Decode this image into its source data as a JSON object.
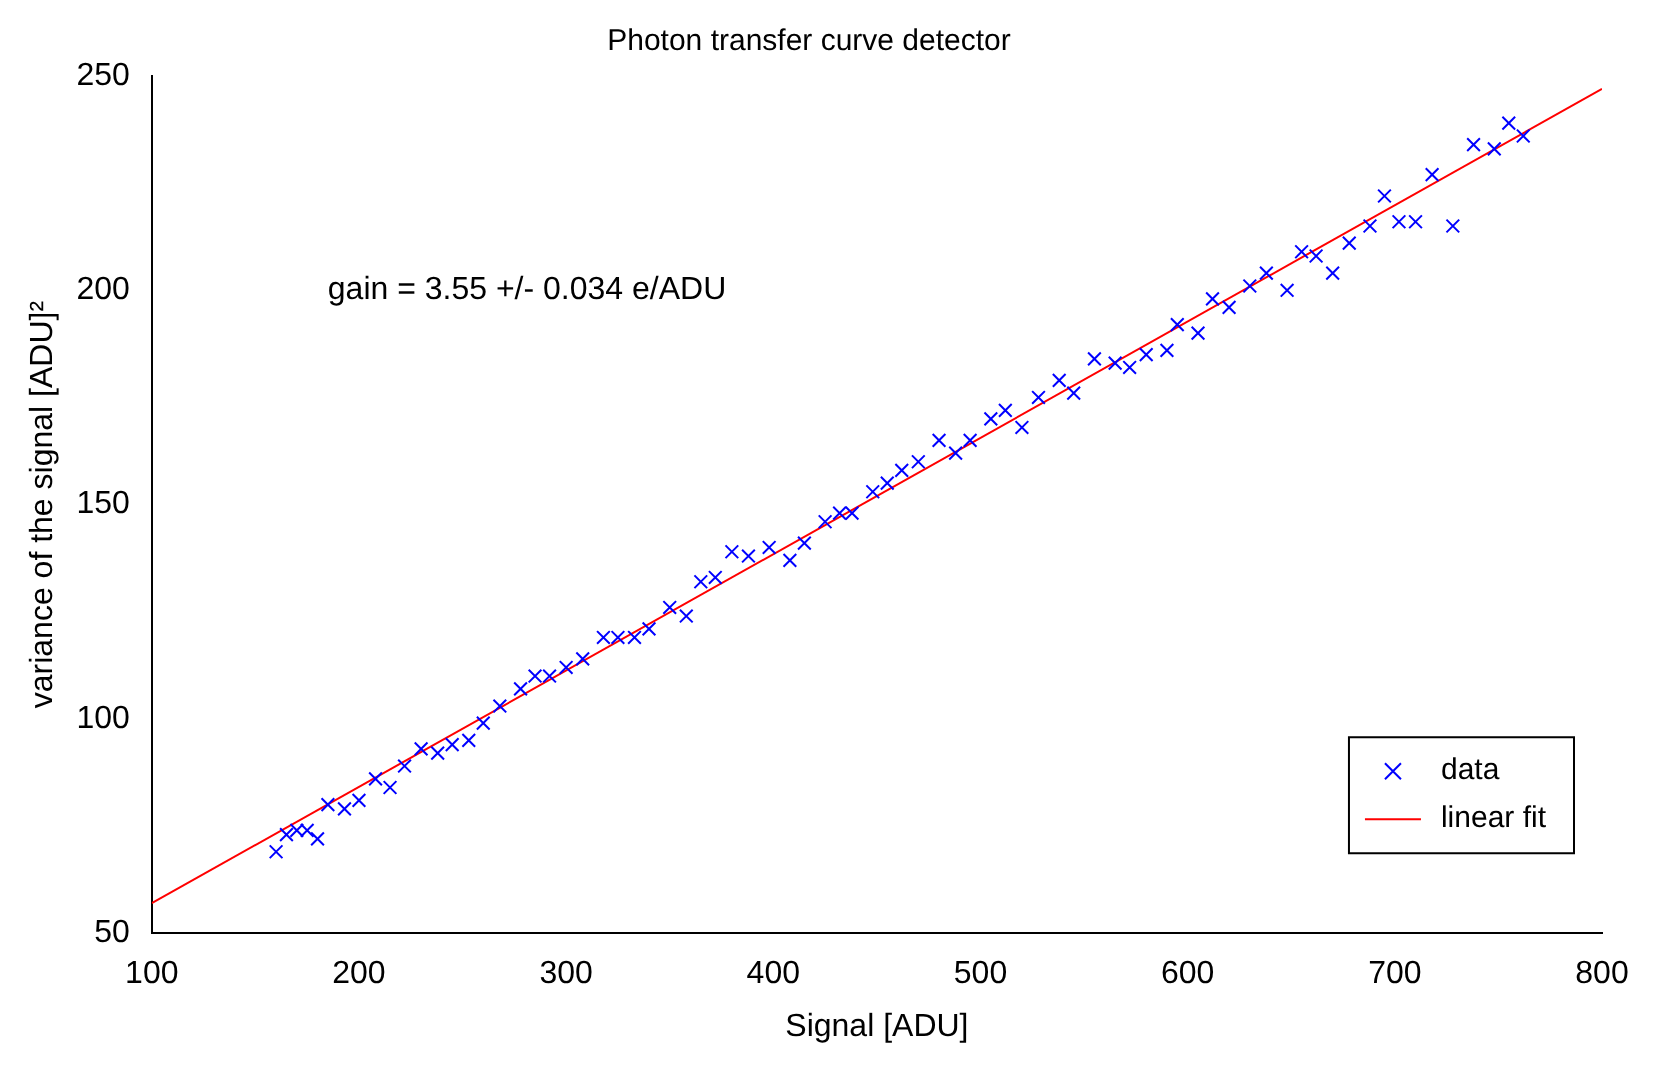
{
  "chart_data": {
    "type": "scatter",
    "title": "Photon transfer curve detector",
    "xlabel": "Signal [ADU]",
    "ylabel": "variance of the signal [ADU]²",
    "annotations": [
      "gain = 3.55 +/- 0.034 e/ADU"
    ],
    "xlim": [
      100,
      800
    ],
    "xticks": [
      100,
      200,
      300,
      400,
      500,
      600,
      700,
      800
    ],
    "ylim": [
      50,
      250
    ],
    "yticks": [
      50,
      100,
      150,
      200,
      250
    ],
    "grid": false,
    "legend": "bottom right",
    "marker": "cross",
    "series": [
      {
        "name": "data",
        "color": "#0000ff",
        "x": [
          160,
          165,
          170,
          175,
          180,
          185,
          193,
          200,
          208,
          215,
          222,
          230,
          238,
          245,
          253,
          260,
          268,
          278,
          285,
          292,
          300,
          308,
          318,
          325,
          333,
          340,
          350,
          358,
          365,
          372,
          380,
          388,
          398,
          408,
          415,
          425,
          432,
          438,
          448,
          455,
          462,
          470,
          480,
          488,
          495,
          505,
          512,
          520,
          528,
          538,
          545,
          555,
          565,
          572,
          580,
          590,
          595,
          605,
          612,
          620,
          630,
          638,
          648,
          655,
          662,
          670,
          678,
          688,
          695,
          702,
          710,
          718,
          728,
          738,
          748,
          755,
          762
        ],
        "values": [
          69,
          73,
          74,
          74,
          72,
          80,
          79,
          81,
          86,
          84,
          89,
          93,
          92,
          94,
          95,
          99,
          103,
          107,
          110,
          110,
          112,
          114,
          119,
          119,
          119,
          121,
          126,
          124,
          132,
          133,
          139,
          138,
          140,
          137,
          141,
          146,
          148,
          148,
          153,
          155,
          158,
          160,
          165,
          162,
          165,
          170,
          172,
          168,
          175,
          179,
          176,
          184,
          183,
          182,
          185,
          186,
          192,
          190,
          198,
          196,
          201,
          204,
          200,
          209,
          208,
          204,
          211,
          215,
          222,
          216,
          216,
          227,
          215,
          234,
          233,
          239,
          236
        ]
      },
      {
        "name": "linear fit",
        "type": "line",
        "color": "#ff0000",
        "marker": "none",
        "x": [
          100,
          800
        ],
        "values": [
          57,
          247
        ]
      }
    ]
  }
}
